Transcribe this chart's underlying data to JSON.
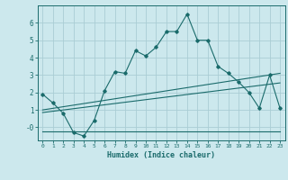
{
  "xlabel": "Humidex (Indice chaleur)",
  "bg_color": "#cce8ed",
  "grid_color": "#aacdd4",
  "line_color": "#1a6b6b",
  "xlim": [
    -0.5,
    23.5
  ],
  "ylim": [
    -0.75,
    7.0
  ],
  "xticks": [
    0,
    1,
    2,
    3,
    4,
    5,
    6,
    7,
    8,
    9,
    10,
    11,
    12,
    13,
    14,
    15,
    16,
    17,
    18,
    19,
    20,
    21,
    22,
    23
  ],
  "yticks": [
    0,
    1,
    2,
    3,
    4,
    5,
    6
  ],
  "ytick_labels": [
    "-0",
    "1",
    "2",
    "3",
    "4",
    "5",
    "6"
  ],
  "line1_x": [
    0,
    1,
    2,
    3,
    4,
    5,
    6,
    7,
    8,
    9,
    10,
    11,
    12,
    13,
    14,
    15,
    16,
    17,
    18,
    19,
    20,
    21,
    22,
    23
  ],
  "line1_y": [
    1.9,
    1.4,
    0.8,
    -0.3,
    -0.5,
    0.4,
    2.1,
    3.2,
    3.1,
    4.4,
    4.1,
    4.6,
    5.5,
    5.5,
    6.5,
    5.0,
    5.0,
    3.5,
    3.1,
    2.6,
    2.0,
    1.1,
    3.0,
    1.1
  ],
  "line2_x": [
    0,
    23
  ],
  "line2_y": [
    1.0,
    3.1
  ],
  "line3_x": [
    0,
    23
  ],
  "line3_y": [
    0.85,
    2.55
  ],
  "line4_x": [
    0,
    23
  ],
  "line4_y": [
    -0.25,
    -0.25
  ]
}
